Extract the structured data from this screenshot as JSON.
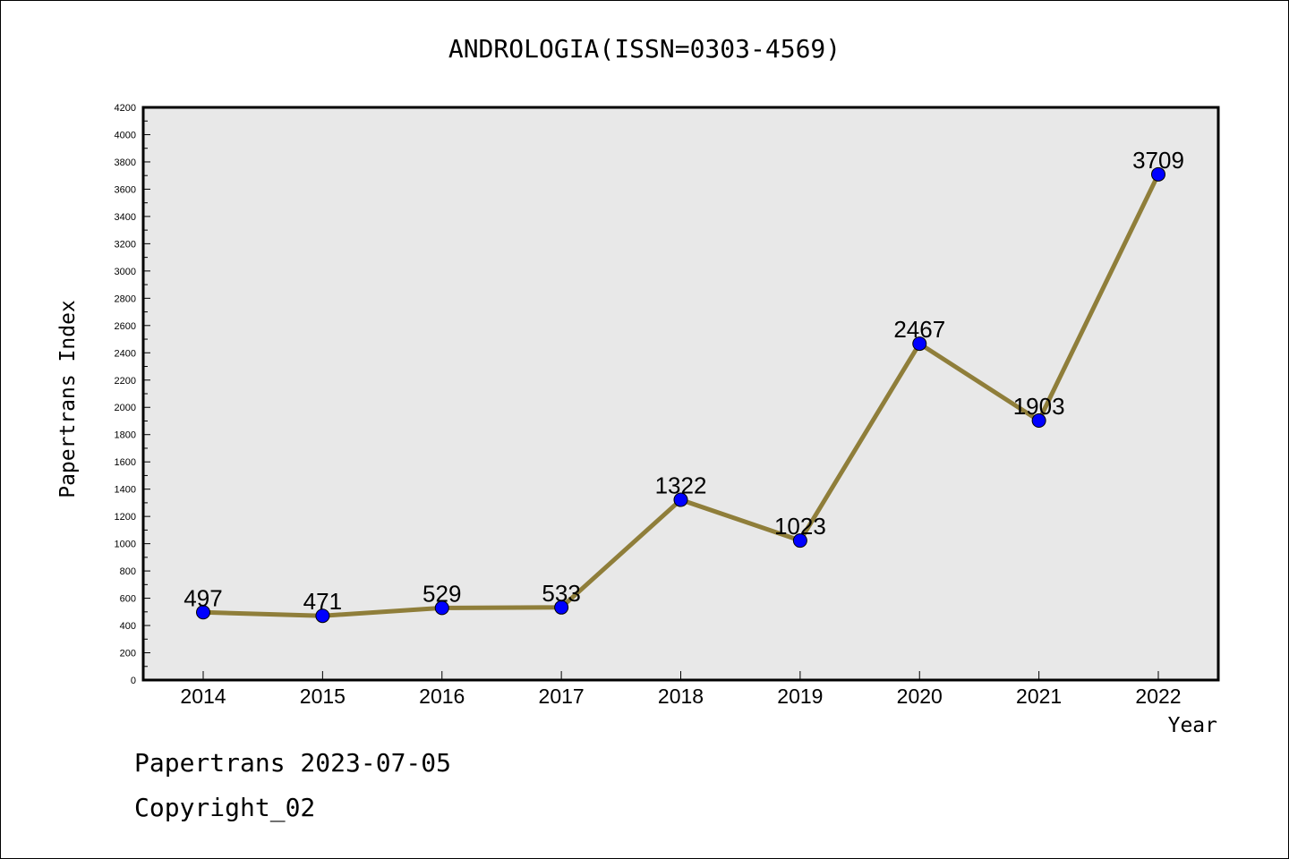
{
  "chart_data": {
    "type": "line",
    "title": "ANDROLOGIA(ISSN=0303-4569)",
    "xlabel": "Year",
    "ylabel": "Papertrans Index",
    "categories": [
      "2014",
      "2015",
      "2016",
      "2017",
      "2018",
      "2019",
      "2020",
      "2021",
      "2022"
    ],
    "values": [
      497,
      471,
      529,
      533,
      1322,
      1023,
      2467,
      1903,
      3709
    ],
    "data_labels": [
      "497",
      "471",
      "529",
      "533",
      "1322",
      "1023",
      "2467",
      "1903",
      "3709"
    ],
    "ylim": [
      0,
      4200
    ],
    "yticks": [
      0,
      200,
      400,
      600,
      800,
      1000,
      1200,
      1400,
      1600,
      1800,
      2000,
      2200,
      2400,
      2600,
      2800,
      3000,
      3200,
      3400,
      3600,
      3800,
      4000,
      4200
    ],
    "grid": false,
    "colors": {
      "line": "#8f7e3a",
      "marker": "#0000ff",
      "plot_background": "#e8e8e8"
    }
  },
  "footer": {
    "line1": "Papertrans 2023-07-05",
    "line2": "Copyright_02"
  }
}
